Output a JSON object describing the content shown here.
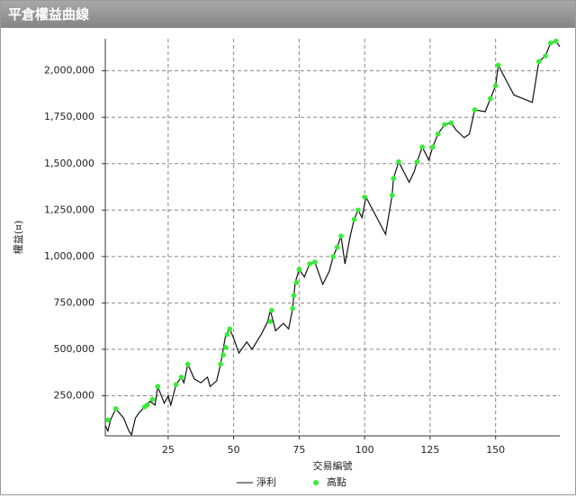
{
  "chart_data": {
    "type": "line",
    "title": "平倉權益曲線",
    "x_label": "交易編號",
    "y_label": "權益(¤)",
    "xlim": [
      1,
      174.5
    ],
    "ylim": [
      34000,
      2173000
    ],
    "xticks": [
      25,
      50,
      75,
      100,
      125,
      150
    ],
    "yticks": [
      {
        "value": 250000,
        "label": "250,000"
      },
      {
        "value": 500000,
        "label": "500,000"
      },
      {
        "value": 750000,
        "label": "750,000"
      },
      {
        "value": 1000000,
        "label": "1,000,000"
      },
      {
        "value": 1250000,
        "label": "1,250,000"
      },
      {
        "value": 1500000,
        "label": "1,500,000"
      },
      {
        "value": 1750000,
        "label": "1,750,000"
      },
      {
        "value": 2000000,
        "label": "2,000,000"
      }
    ],
    "grid": true,
    "series": [
      {
        "name": "淨利",
        "color": "#111111",
        "kind": "line",
        "x": [
          1,
          2,
          3,
          5,
          8,
          10,
          11,
          12.5,
          14,
          16,
          18,
          20,
          21,
          23.5,
          25,
          26,
          28,
          30,
          31,
          32.5,
          35,
          37.5,
          40,
          41,
          43.5,
          45,
          46,
          47,
          48.5,
          50,
          52,
          55,
          57,
          60.5,
          63,
          64,
          66,
          69,
          71,
          72.5,
          73.5,
          75,
          77,
          79,
          81,
          84,
          86.5,
          88,
          89.5,
          91,
          92.5,
          94.5,
          96,
          97.5,
          99,
          100.5,
          108,
          110.5,
          111,
          113,
          117,
          119,
          120,
          122,
          124.5,
          126,
          128,
          130.5,
          133,
          135,
          138,
          140,
          142,
          146,
          148,
          150,
          151,
          157,
          164,
          166.5,
          169,
          171,
          173,
          174.5
        ],
        "values": [
          90000,
          60000,
          120000,
          180000,
          130000,
          60000,
          40000,
          130000,
          160000,
          190000,
          220000,
          200000,
          300000,
          210000,
          250000,
          200000,
          310000,
          350000,
          320000,
          420000,
          340000,
          320000,
          350000,
          300000,
          330000,
          420000,
          500000,
          580000,
          610000,
          560000,
          480000,
          540000,
          500000,
          580000,
          650000,
          710000,
          600000,
          640000,
          610000,
          720000,
          860000,
          930000,
          890000,
          960000,
          970000,
          850000,
          920000,
          1000000,
          1050000,
          1110000,
          960000,
          1110000,
          1200000,
          1250000,
          1210000,
          1320000,
          1120000,
          1330000,
          1420000,
          1510000,
          1400000,
          1460000,
          1510000,
          1590000,
          1520000,
          1590000,
          1660000,
          1710000,
          1720000,
          1680000,
          1640000,
          1660000,
          1790000,
          1780000,
          1850000,
          1920000,
          2030000,
          1870000,
          1830000,
          2050000,
          2080000,
          2150000,
          2160000,
          2130000
        ]
      },
      {
        "name": "高點",
        "color": "#33ee33",
        "kind": "points",
        "x": [
          2,
          5,
          16,
          17,
          19,
          21,
          28,
          30,
          32.5,
          45,
          46,
          47,
          47.5,
          48.5,
          64,
          64.5,
          72.5,
          73,
          74,
          75,
          79,
          81,
          88,
          89.5,
          91,
          96,
          97.5,
          100,
          110.5,
          111,
          113,
          120,
          122,
          126,
          128,
          130.5,
          133,
          142,
          148,
          150,
          151,
          166.5,
          169,
          171,
          173
        ],
        "values": [
          120000,
          180000,
          190000,
          200000,
          230000,
          300000,
          310000,
          350000,
          420000,
          420000,
          470000,
          510000,
          580000,
          610000,
          650000,
          710000,
          720000,
          790000,
          860000,
          930000,
          960000,
          970000,
          1000000,
          1050000,
          1110000,
          1200000,
          1250000,
          1320000,
          1330000,
          1420000,
          1510000,
          1510000,
          1590000,
          1590000,
          1660000,
          1710000,
          1720000,
          1790000,
          1850000,
          1920000,
          2030000,
          2050000,
          2080000,
          2150000,
          2160000
        ]
      }
    ]
  }
}
